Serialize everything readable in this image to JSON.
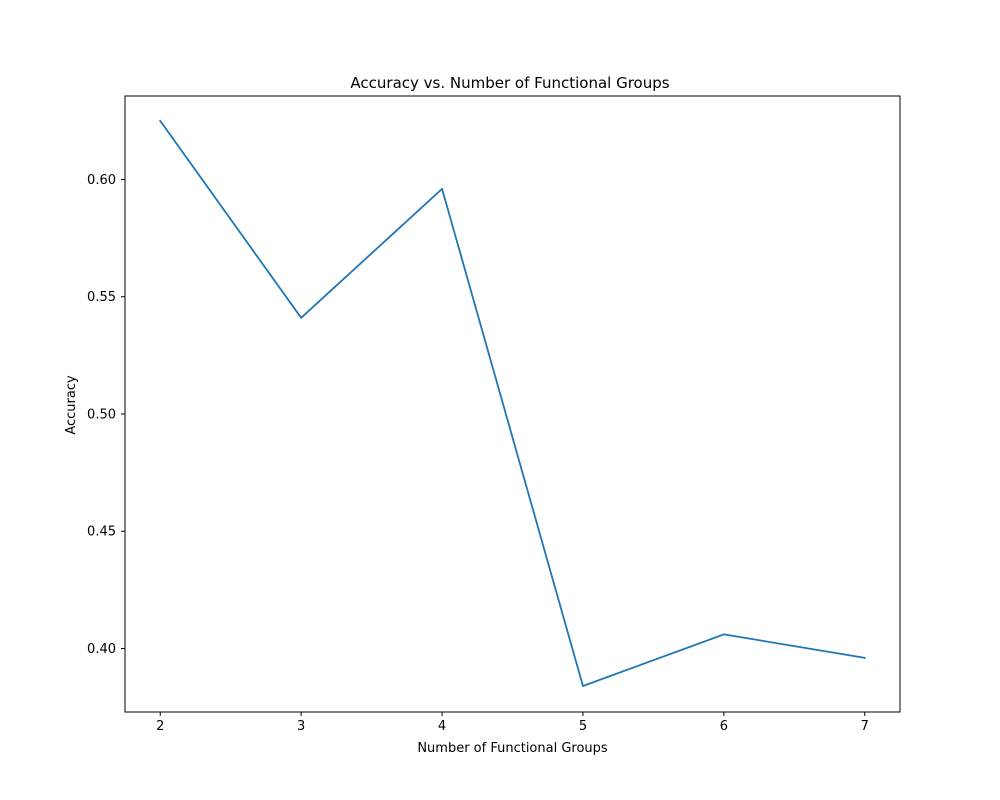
{
  "chart_data": {
    "type": "line",
    "title": "Accuracy vs. Number of Functional Groups",
    "xlabel": "Number of Functional Groups",
    "ylabel": "Accuracy",
    "x": [
      2,
      3,
      4,
      5,
      6,
      7
    ],
    "series": [
      {
        "values": [
          0.625,
          0.541,
          0.596,
          0.384,
          0.406,
          0.396
        ]
      }
    ],
    "xticks": [
      2,
      3,
      4,
      5,
      6,
      7
    ],
    "xtick_labels": [
      "2",
      "3",
      "4",
      "5",
      "6",
      "7"
    ],
    "yticks": [
      0.4,
      0.45,
      0.5,
      0.55,
      0.6
    ],
    "ytick_labels": [
      "0.40",
      "0.45",
      "0.50",
      "0.55",
      "0.60"
    ],
    "xlim": [
      1.75,
      7.25
    ],
    "ylim": [
      0.3729,
      0.6356
    ],
    "grid": false,
    "colors": {
      "line": "#1f77b4"
    }
  }
}
